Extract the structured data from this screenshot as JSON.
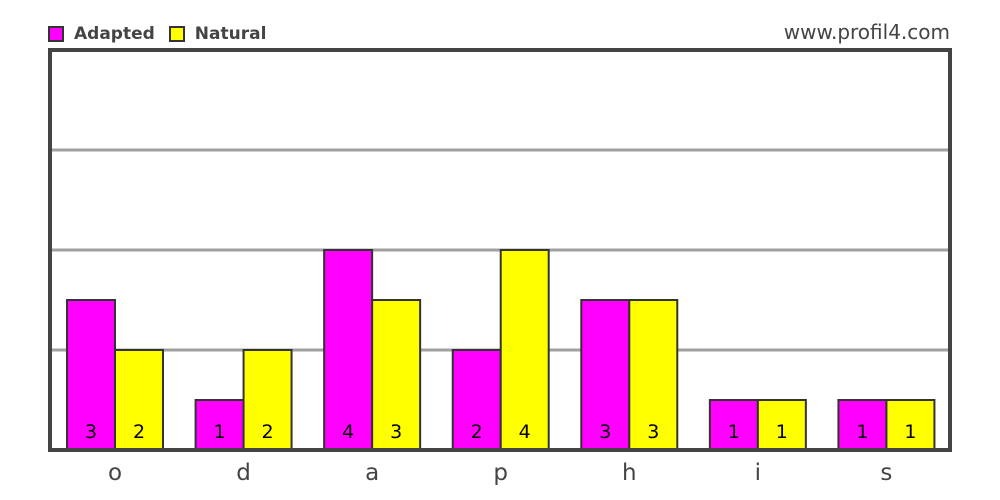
{
  "watermark": "www.profil4.com",
  "chart_data": {
    "type": "bar",
    "categories": [
      "o",
      "d",
      "a",
      "p",
      "h",
      "i",
      "s"
    ],
    "series": [
      {
        "name": "Adapted",
        "color": "#ff00ff",
        "values": [
          3,
          1,
          4,
          2,
          3,
          1,
          1
        ]
      },
      {
        "name": "Natural",
        "color": "#ffff00",
        "values": [
          2,
          2,
          3,
          4,
          3,
          1,
          1
        ]
      }
    ],
    "title": "",
    "xlabel": "",
    "ylabel": "",
    "ylim": [
      0,
      8
    ],
    "grid": true,
    "legend": "top-left"
  }
}
